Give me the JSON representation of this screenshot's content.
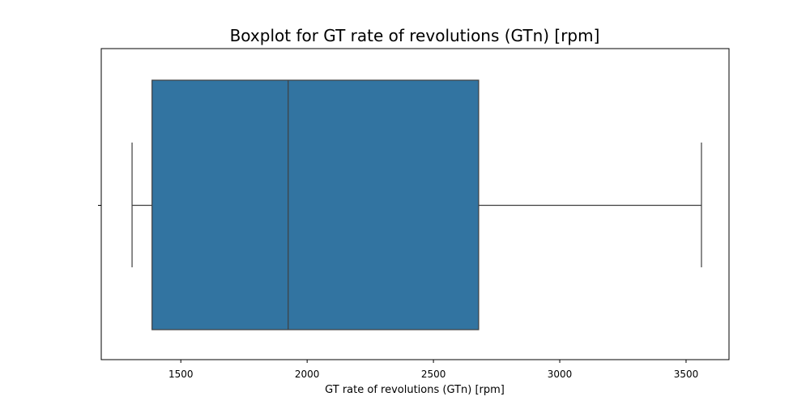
{
  "chart_data": {
    "type": "boxplot",
    "title": "Boxplot for GT rate of revolutions (GTn) [rpm]",
    "xlabel": "GT rate of revolutions (GTn) [rpm]",
    "ylabel": "",
    "orientation": "horizontal",
    "xlim": [
      1185,
      3670
    ],
    "xticks": [
      1500,
      2000,
      2500,
      3000,
      3500
    ],
    "xtick_labels": [
      "1500",
      "2000",
      "2500",
      "3000",
      "3500"
    ],
    "grid": false,
    "box": {
      "whisker_low": 1307,
      "q1": 1386,
      "median": 1925,
      "q3": 2679,
      "whisker_high": 3561
    },
    "colors": {
      "box_fill": "#3274a1",
      "line": "#3f3f3f",
      "axes": "#000000"
    }
  }
}
